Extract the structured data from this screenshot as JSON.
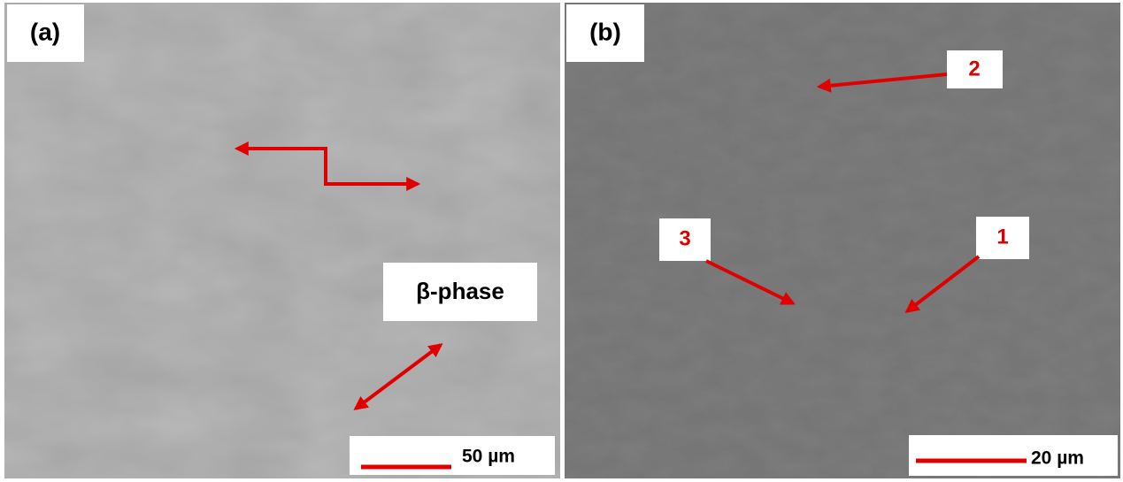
{
  "panels": [
    {
      "label": "(a)",
      "annotation": "β-phase",
      "scale_bar": "50 µm"
    },
    {
      "label": "(b)",
      "markers": [
        "2",
        "3",
        "1"
      ],
      "scale_bar": "20 µm"
    }
  ]
}
